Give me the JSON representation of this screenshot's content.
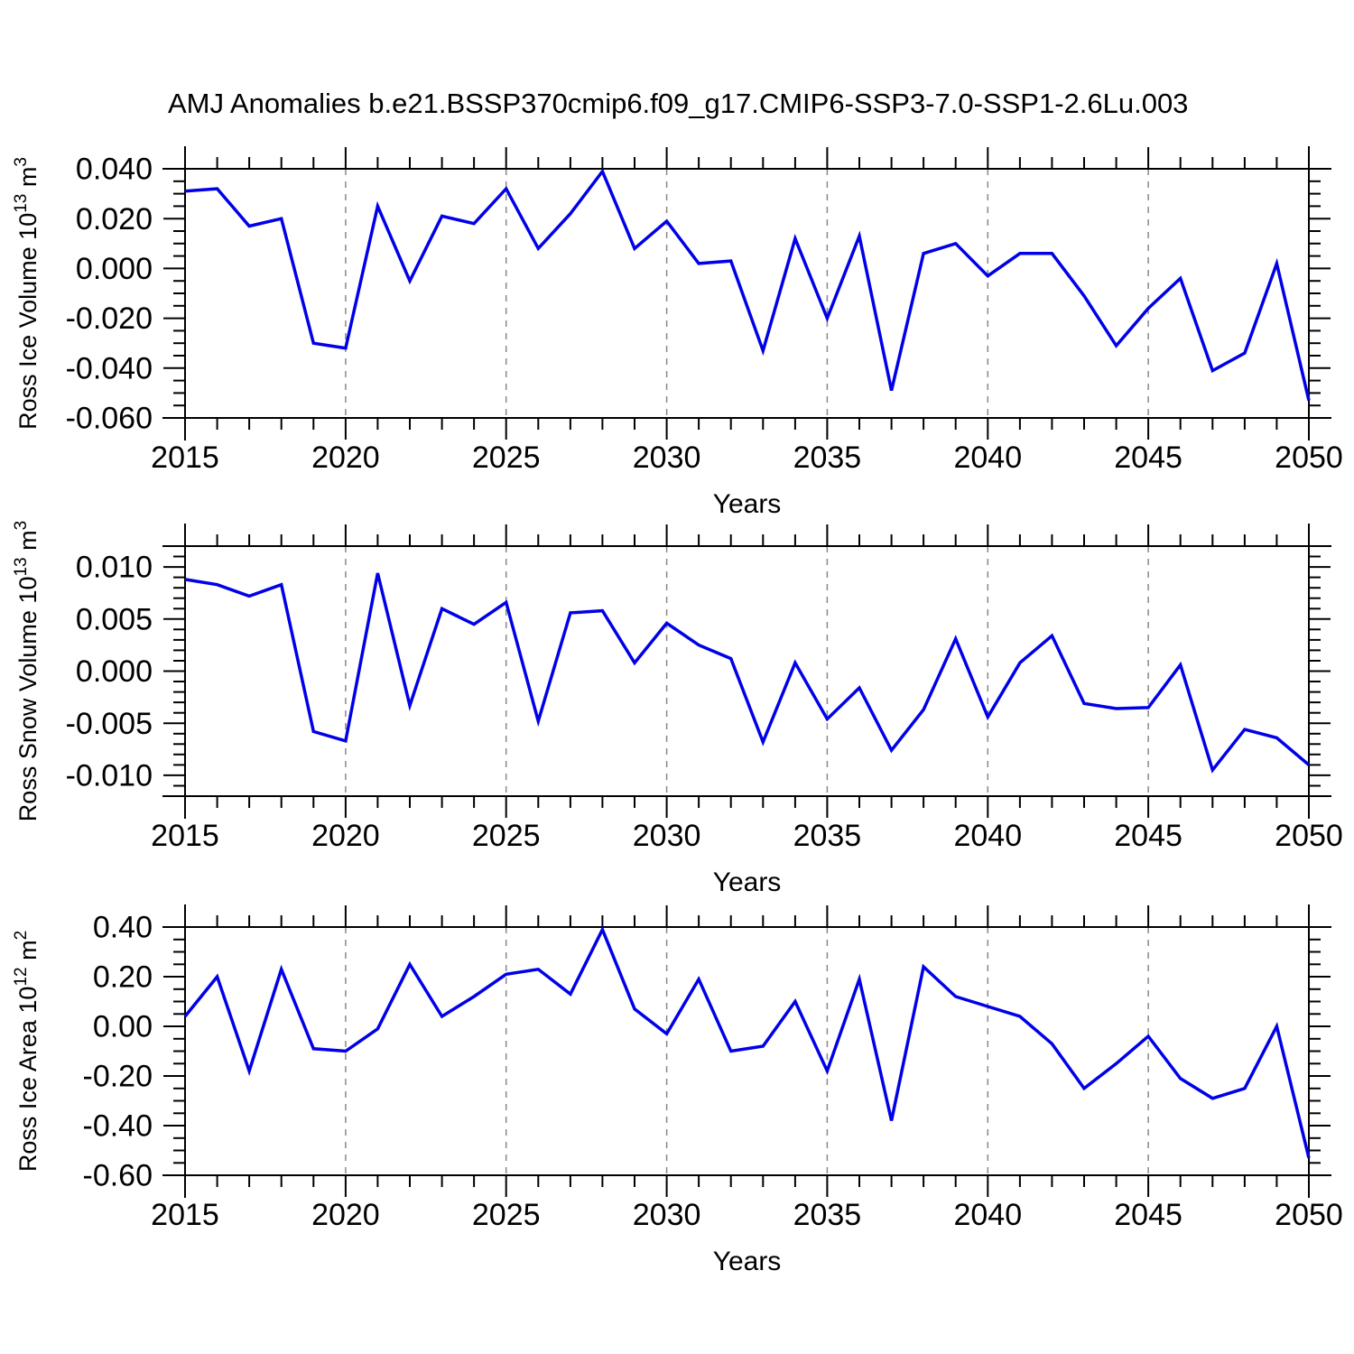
{
  "title": "AMJ Anomalies b.e21.BSSP370cmip6.f09_g17.CMIP6-SSP3-7.0-SSP1-2.6Lu.003",
  "styles": {
    "background_color": "#FFFFFF",
    "line_color": "#0000E8",
    "frame_color": "#000000",
    "gridline_color": "#888888",
    "text_color": "#000000"
  },
  "chart_data": [
    {
      "type": "line",
      "id": "ross-ice-volume",
      "ylabel_text": "Ross Ice Volume 10^13 m^3",
      "ylabel_parts": [
        {
          "t": "Ross Ice Volume 10"
        },
        {
          "t": "13",
          "sup": true
        },
        {
          "t": " m"
        },
        {
          "t": "3",
          "sup": true
        }
      ],
      "xlabel": "Years",
      "x_start": 2015,
      "x_end": 2050,
      "x_step": 1,
      "xtick_labels": [
        "2015",
        "2020",
        "2025",
        "2030",
        "2035",
        "2040",
        "2045",
        "2050"
      ],
      "grid_years": [
        2020,
        2025,
        2030,
        2035,
        2040,
        2045
      ],
      "ylim": [
        -0.06,
        0.04
      ],
      "y_minor_step": 0.005,
      "ytick_labels": [
        "0.040",
        "0.020",
        "0.000",
        "-0.020",
        "-0.040",
        "-0.060"
      ],
      "legend": "none",
      "grid": "vertical-dashed",
      "values": [
        0.031,
        0.032,
        0.017,
        0.02,
        -0.03,
        -0.032,
        0.025,
        -0.005,
        0.021,
        0.018,
        0.032,
        0.008,
        0.022,
        0.039,
        0.008,
        0.019,
        0.002,
        0.003,
        -0.033,
        0.012,
        -0.02,
        0.013,
        -0.049,
        0.006,
        0.01,
        -0.003,
        0.006,
        0.006,
        -0.011,
        -0.031,
        -0.016,
        -0.004,
        -0.041,
        -0.034,
        0.002,
        -0.053
      ]
    },
    {
      "type": "line",
      "id": "ross-snow-volume",
      "ylabel_text": "Ross Snow Volume 10^13 m^3",
      "ylabel_parts": [
        {
          "t": "Ross Snow Volume 10"
        },
        {
          "t": "13",
          "sup": true
        },
        {
          "t": " m"
        },
        {
          "t": "3",
          "sup": true
        }
      ],
      "xlabel": "Years",
      "x_start": 2015,
      "x_end": 2050,
      "x_step": 1,
      "xtick_labels": [
        "2015",
        "2020",
        "2025",
        "2030",
        "2035",
        "2040",
        "2045",
        "2050"
      ],
      "grid_years": [
        2020,
        2025,
        2030,
        2035,
        2040,
        2045
      ],
      "ylim": [
        -0.012,
        0.012
      ],
      "y_minor_step": 0.001,
      "ytick_labels": [
        "0.010",
        "0.005",
        "0.000",
        "-0.005",
        "-0.010"
      ],
      "legend": "none",
      "grid": "vertical-dashed",
      "values": [
        0.0088,
        0.0083,
        0.0072,
        0.0083,
        -0.0058,
        -0.0067,
        0.0094,
        -0.0033,
        0.006,
        0.0045,
        0.0066,
        -0.0048,
        0.0056,
        0.0058,
        0.0008,
        0.0046,
        0.0025,
        0.0012,
        -0.0068,
        0.0008,
        -0.0046,
        -0.0016,
        -0.0076,
        -0.0037,
        0.0031,
        -0.0044,
        0.0008,
        0.0034,
        -0.0031,
        -0.0036,
        -0.0035,
        0.0006,
        -0.0095,
        -0.0056,
        -0.0064,
        -0.009
      ]
    },
    {
      "type": "line",
      "id": "ross-ice-area",
      "ylabel_text": "Ross Ice Area 10^12 m^2",
      "ylabel_parts": [
        {
          "t": "Ross Ice Area 10"
        },
        {
          "t": "12",
          "sup": true
        },
        {
          "t": " m"
        },
        {
          "t": "2",
          "sup": true
        }
      ],
      "xlabel": "Years",
      "x_start": 2015,
      "x_end": 2050,
      "x_step": 1,
      "xtick_labels": [
        "2015",
        "2020",
        "2025",
        "2030",
        "2035",
        "2040",
        "2045",
        "2050"
      ],
      "grid_years": [
        2020,
        2025,
        2030,
        2035,
        2040,
        2045
      ],
      "ylim": [
        -0.6,
        0.4
      ],
      "y_minor_step": 0.05,
      "ytick_labels": [
        "0.40",
        "0.20",
        "0.00",
        "-0.20",
        "-0.40",
        "-0.60"
      ],
      "legend": "none",
      "grid": "vertical-dashed",
      "values": [
        0.04,
        0.2,
        -0.18,
        0.23,
        -0.09,
        -0.1,
        -0.01,
        0.25,
        0.04,
        0.12,
        0.21,
        0.23,
        0.13,
        0.39,
        0.07,
        -0.03,
        0.19,
        -0.1,
        -0.08,
        0.1,
        -0.18,
        0.19,
        -0.38,
        0.24,
        0.12,
        0.08,
        0.04,
        -0.07,
        -0.25,
        -0.15,
        -0.04,
        -0.21,
        -0.29,
        -0.25,
        0.0,
        -0.53
      ]
    }
  ]
}
